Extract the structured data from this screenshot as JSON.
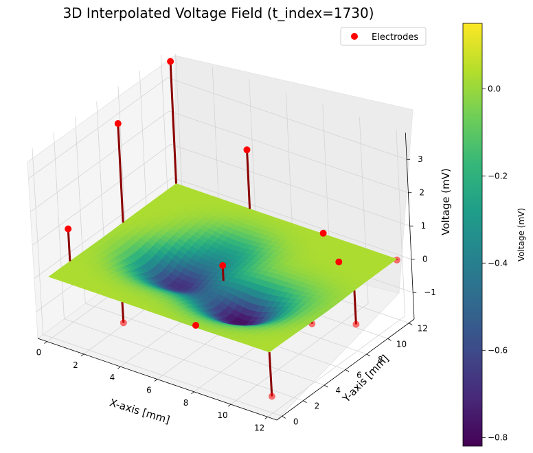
{
  "chart_data": {
    "type": "surface-3d",
    "title": "3D Interpolated Voltage Field (t_index=1730)",
    "xlabel": "X-axis [mm]",
    "ylabel": "Y-axis [mm]",
    "zlabel": "Voltage (mV)",
    "xlim": [
      -0.5,
      12.5
    ],
    "ylim": [
      -0.5,
      12.5
    ],
    "zlim": [
      -1.8,
      3.5
    ],
    "x_ticks": [
      0,
      2,
      4,
      6,
      8,
      10,
      12
    ],
    "y_ticks": [
      0,
      2,
      4,
      6,
      8,
      10,
      12
    ],
    "z_ticks": [
      -1,
      0,
      1,
      2,
      3
    ],
    "x_tick_labels": [
      "0",
      "2",
      "4",
      "6",
      "8",
      "10",
      "12"
    ],
    "y_tick_labels": [
      "0",
      "2",
      "4",
      "6",
      "8",
      "10",
      "12"
    ],
    "z_tick_labels": [
      "−1",
      "0",
      "1",
      "2",
      "3"
    ],
    "surface_base_mV": 0.03,
    "surface_dips": [
      {
        "x": 4,
        "y": 5,
        "depth_mV": -0.68
      },
      {
        "x": 8,
        "y": 4,
        "depth_mV": -0.8
      },
      {
        "x": 5,
        "y": 8,
        "depth_mV": -0.3
      },
      {
        "x": 10,
        "y": 6,
        "depth_mV": -0.08
      }
    ],
    "legend": {
      "label": "Electrodes",
      "location": "upper right",
      "color": "#ff0000"
    },
    "electrodes": [
      {
        "x": 0,
        "y": 2,
        "z": 1.0
      },
      {
        "x": 0,
        "y": 7,
        "z": 3.0
      },
      {
        "x": 0,
        "y": 12,
        "z": 3.7
      },
      {
        "x": 4,
        "y": 0,
        "z": -0.6
      },
      {
        "x": 4,
        "y": 12,
        "z": 1.8
      },
      {
        "x": 8,
        "y": 0,
        "z": 0.08
      },
      {
        "x": 8,
        "y": 12,
        "z": 0.05
      },
      {
        "x": 12,
        "y": 0,
        "z": -1.3
      },
      {
        "x": 12,
        "y": 4,
        "z": -0.05
      },
      {
        "x": 12,
        "y": 8,
        "z": -1.0
      },
      {
        "x": 12,
        "y": 12,
        "z": 0.0
      },
      {
        "x": 6,
        "y": 6,
        "z": 0.1
      },
      {
        "x": 10,
        "y": 10,
        "z": 0.03
      }
    ],
    "colorbar": {
      "label": "Voltage (mV)",
      "vmin": -0.82,
      "vmax": 0.15,
      "ticks": [
        0.0,
        -0.2,
        -0.4,
        -0.6,
        -0.8
      ],
      "tick_labels": [
        "0.0",
        "−0.2",
        "−0.4",
        "−0.6",
        "−0.8"
      ],
      "colormap": "viridis",
      "colors": [
        "#440154",
        "#482878",
        "#3e4989",
        "#31688e",
        "#26828e",
        "#1f9e89",
        "#35b779",
        "#6ece58",
        "#b5de2b",
        "#fde725"
      ]
    }
  }
}
